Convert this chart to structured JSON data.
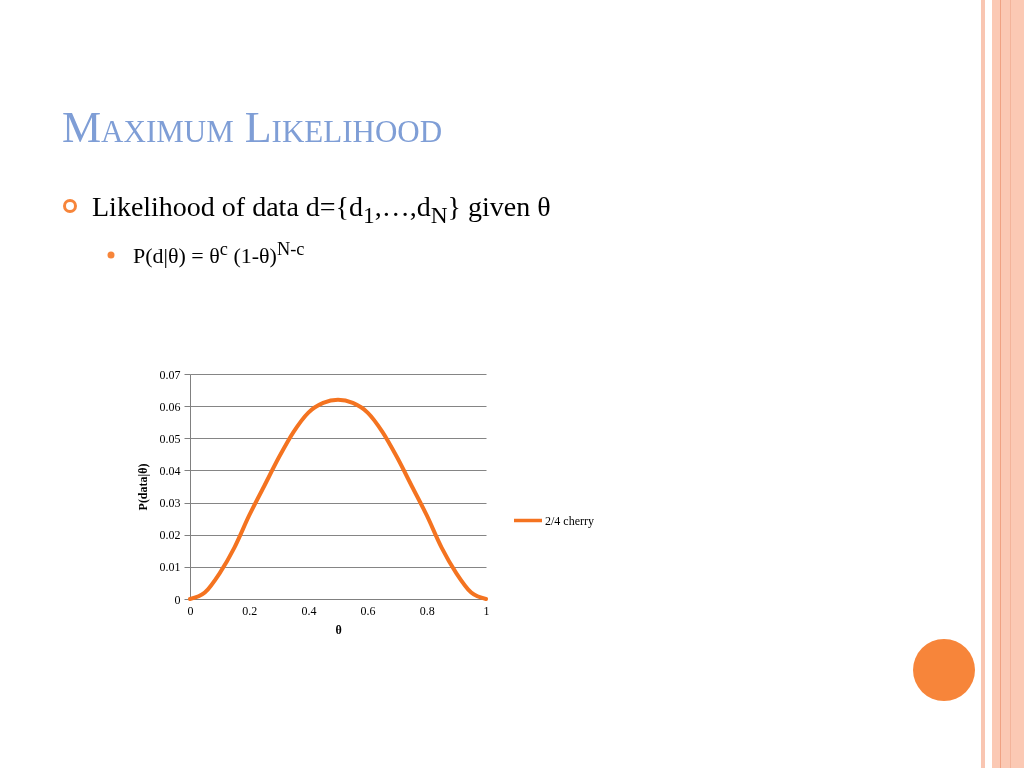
{
  "chart_data": {
    "type": "line",
    "title": "Maximum Likelihood",
    "annotations": [
      "Likelihood of data d={d$_{1}$,…,d$_{N}$} given θ",
      "P(d|θ) = θ$^{c}$ (1-θ)$^{N-c}$"
    ],
    "xlabel": "θ",
    "ylabel": "P(data|θ)",
    "x": [
      0,
      0.05,
      0.1,
      0.15,
      0.2,
      0.25,
      0.3,
      0.35,
      0.4,
      0.45,
      0.5,
      0.55,
      0.6,
      0.65,
      0.7,
      0.75,
      0.8,
      0.85,
      0.9,
      0.95,
      1
    ],
    "series": [
      {
        "name": "2/4 cherry",
        "color": "#f47320",
        "values": [
          0,
          0.002,
          0.008,
          0.016,
          0.026,
          0.035,
          0.044,
          0.052,
          0.058,
          0.061,
          0.062,
          0.061,
          0.058,
          0.052,
          0.044,
          0.035,
          0.026,
          0.016,
          0.008,
          0.002,
          0
        ]
      }
    ],
    "xlim": [
      0,
      1
    ],
    "xticks": [
      0,
      0.2,
      0.4,
      0.6,
      0.8,
      1
    ],
    "ylim": [
      0,
      0.07
    ],
    "yticks": [
      0,
      0.01,
      0.02,
      0.03,
      0.04,
      0.05,
      0.06,
      0.07
    ],
    "grid": "y",
    "legend": "right"
  }
}
